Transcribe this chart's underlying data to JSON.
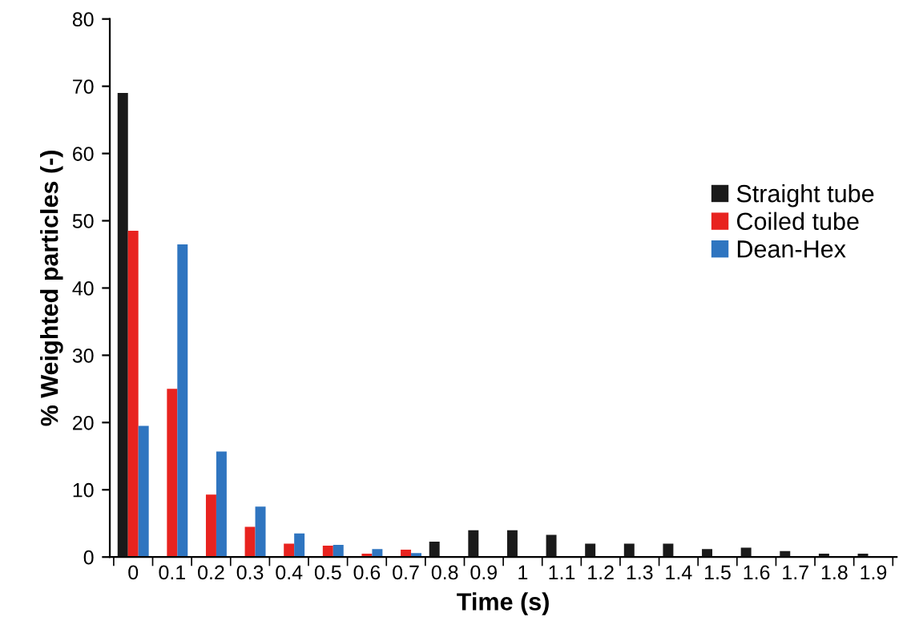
{
  "chart_data": {
    "type": "bar",
    "xlabel": "Time (s)",
    "ylabel": "% Weighted particles (-)",
    "categories": [
      "0",
      "0.1",
      "0.2",
      "0.3",
      "0.4",
      "0.5",
      "0.6",
      "0.7",
      "0.8",
      "0.9",
      "1",
      "1.1",
      "1.2",
      "1.3",
      "1.4",
      "1.5",
      "1.6",
      "1.7",
      "1.8",
      "1.9"
    ],
    "series": [
      {
        "name": "Straight tube",
        "color": "#1a1a1a",
        "values": [
          69,
          0,
          0,
          0,
          0,
          0,
          0,
          0,
          2.3,
          4,
          4,
          3.3,
          2,
          2,
          2,
          1.2,
          1.4,
          0.9,
          0.5,
          0.5
        ]
      },
      {
        "name": "Coiled tube",
        "color": "#e8231f",
        "values": [
          48.5,
          25,
          9.3,
          4.5,
          2,
          1.7,
          0.5,
          1.1,
          0,
          0,
          0,
          0,
          0,
          0,
          0,
          0,
          0,
          0,
          0,
          0
        ]
      },
      {
        "name": "Dean-Hex",
        "color": "#2f75c0",
        "values": [
          19.5,
          46.5,
          15.7,
          7.5,
          3.5,
          1.8,
          1.2,
          0.6,
          0,
          0,
          0,
          0,
          0,
          0,
          0,
          0,
          0,
          0,
          0,
          0
        ]
      }
    ],
    "ylim": [
      0,
      80
    ],
    "yticks": [
      0,
      10,
      20,
      30,
      40,
      50,
      60,
      70,
      80
    ],
    "grid": false,
    "legend": "right"
  }
}
